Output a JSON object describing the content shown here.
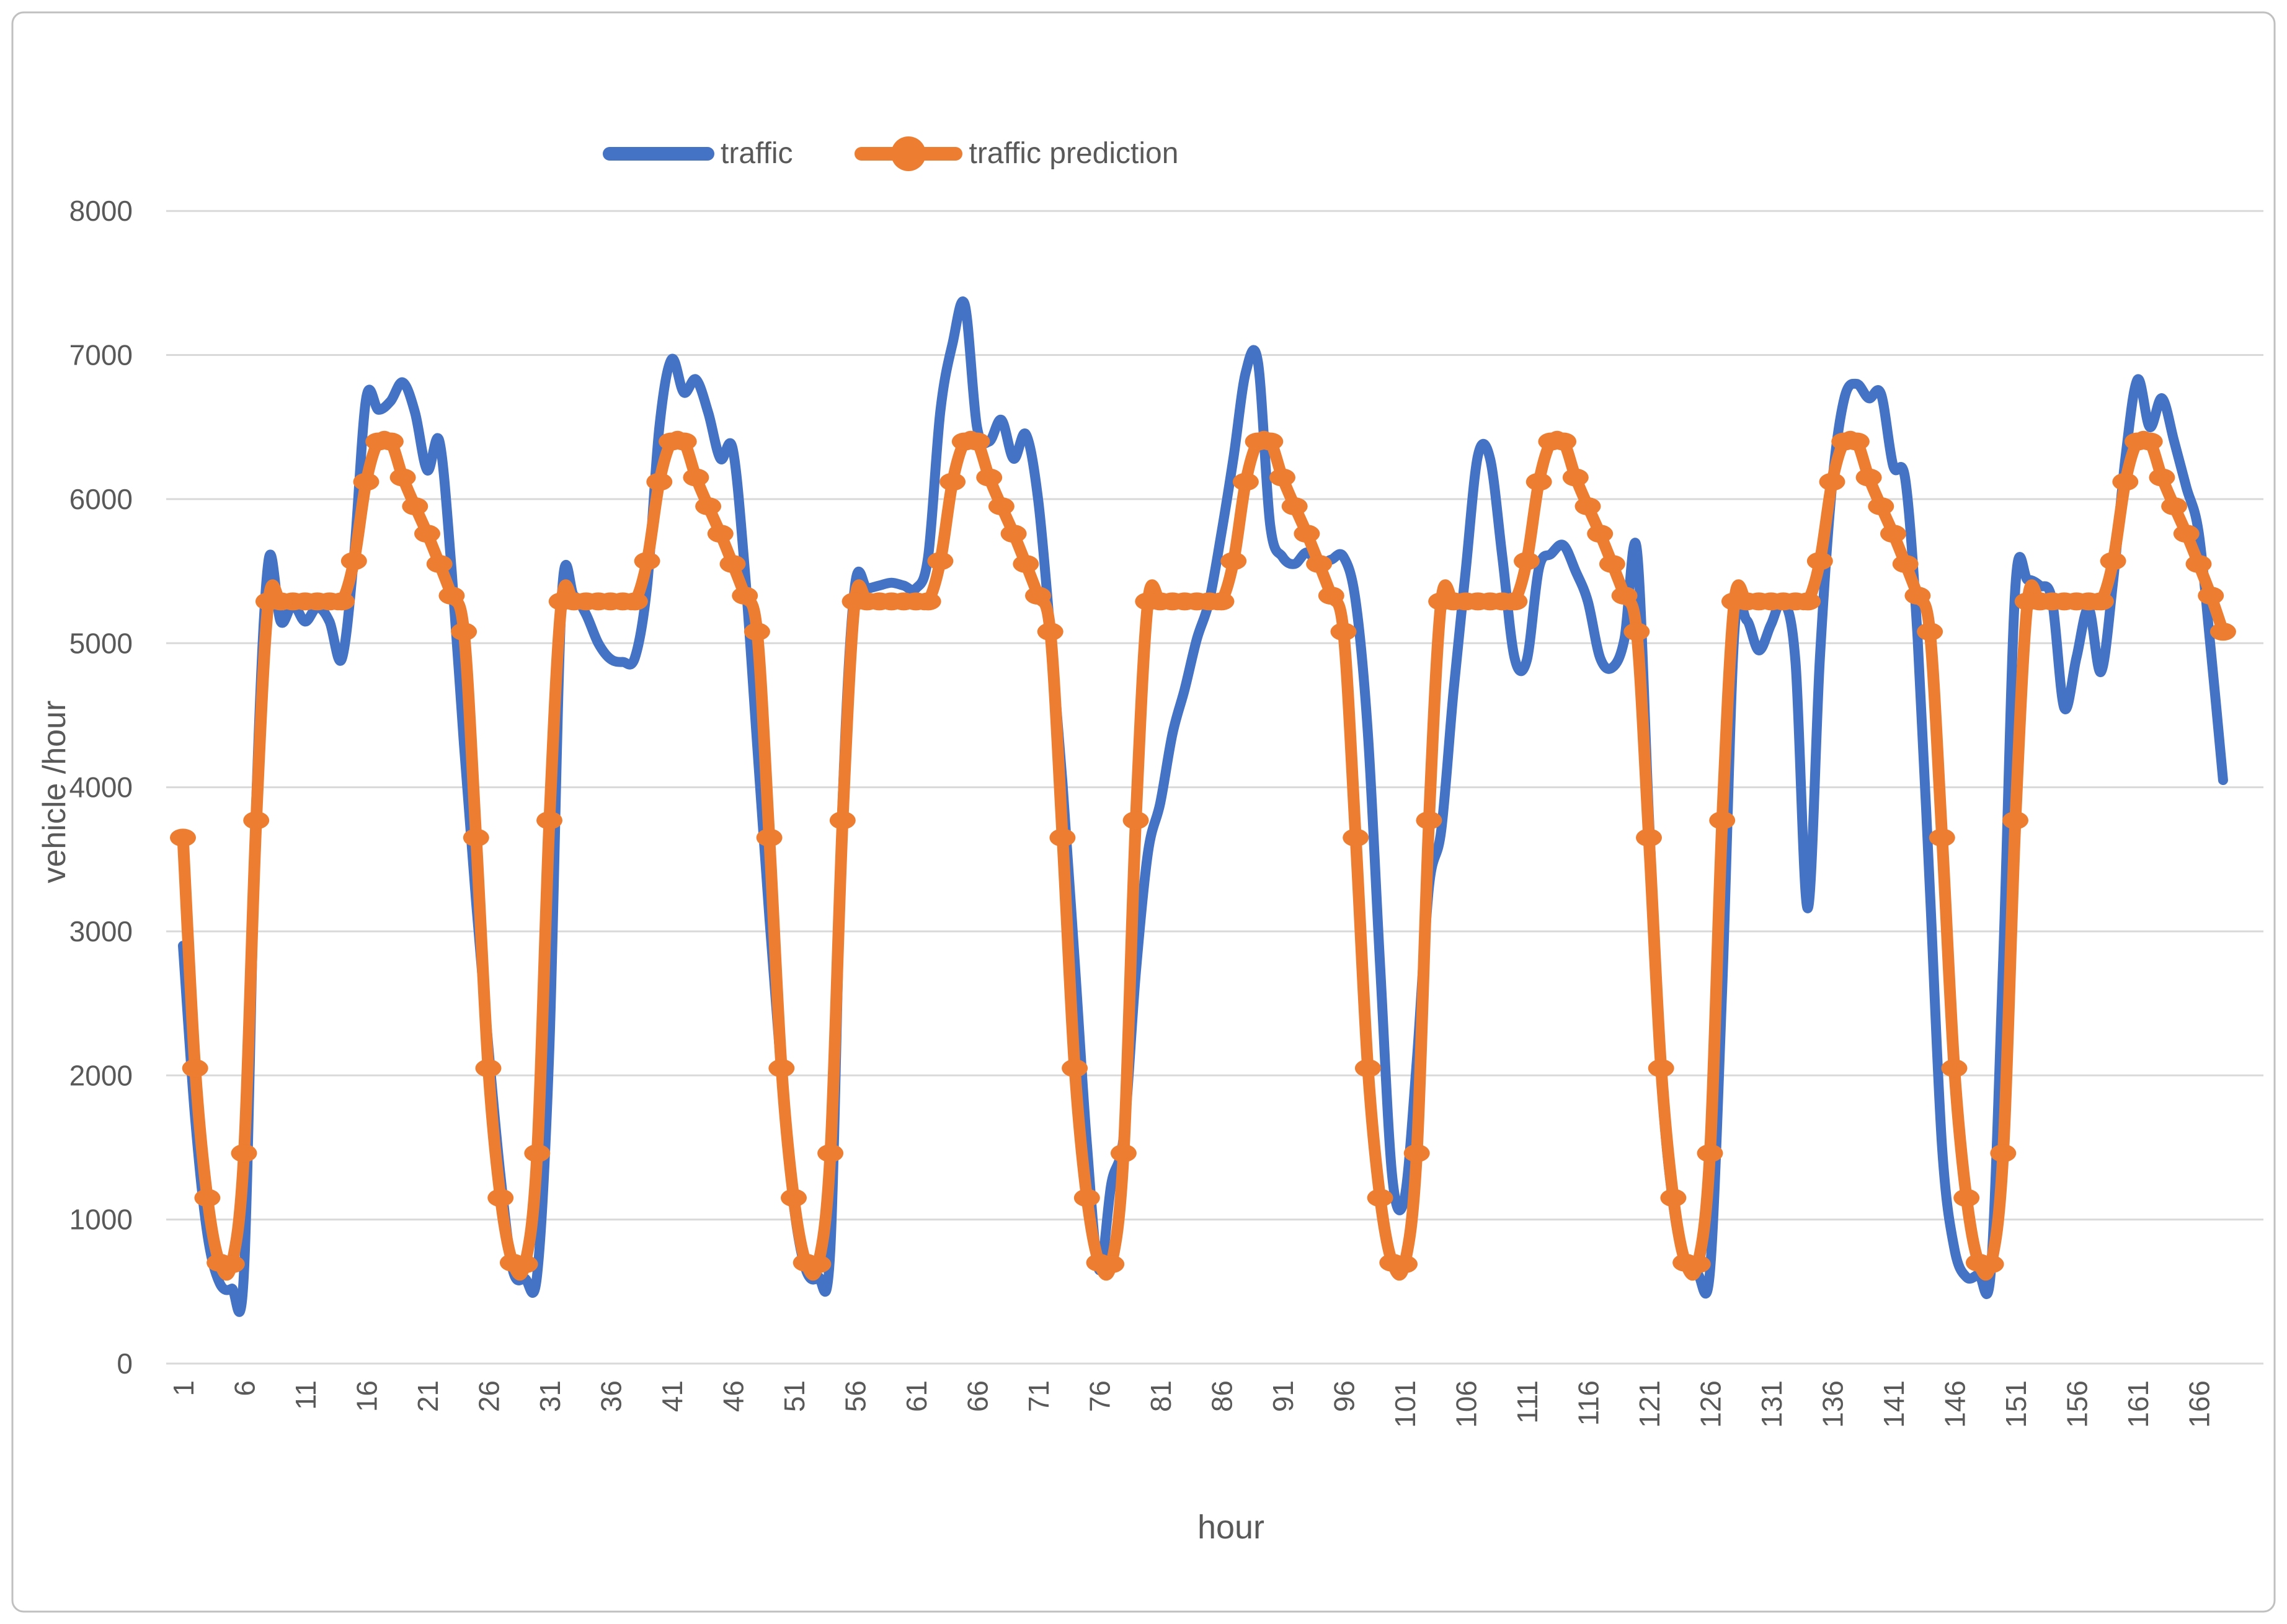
{
  "colors": {
    "traffic_series": "#4472C4",
    "prediction_series": "#ED7D31",
    "gridline": "#D9D9D9",
    "axis_text": "#595959",
    "chart_border": "#C0C0C0",
    "background": "#FFFFFF"
  },
  "legend": {
    "items": [
      {
        "label": "traffic"
      },
      {
        "label": "traffic prediction"
      }
    ]
  },
  "chart_data": {
    "type": "line",
    "title": "",
    "xlabel": "hour",
    "ylabel": "vehicle /hour",
    "x_range": [
      1,
      168
    ],
    "ylim": [
      0,
      8000
    ],
    "grid": "horizontal",
    "legend_position": "top-center",
    "y_ticks": [
      0,
      1000,
      2000,
      3000,
      4000,
      5000,
      6000,
      7000,
      8000
    ],
    "x_ticks": [
      1,
      6,
      11,
      16,
      21,
      26,
      31,
      36,
      41,
      46,
      51,
      56,
      61,
      66,
      71,
      76,
      81,
      86,
      91,
      96,
      101,
      106,
      111,
      116,
      121,
      126,
      131,
      136,
      141,
      146,
      151,
      156,
      161,
      166
    ],
    "series": [
      {
        "name": "traffic",
        "color": "#4472C4",
        "marker": "none",
        "values": [
          2900,
          1700,
          900,
          560,
          520,
          640,
          3900,
          5570,
          5150,
          5270,
          5150,
          5250,
          5150,
          4890,
          5600,
          6700,
          6620,
          6680,
          6810,
          6600,
          6200,
          6400,
          5500,
          4300,
          3200,
          2200,
          1300,
          650,
          590,
          620,
          2200,
          5300,
          5330,
          5200,
          5000,
          4890,
          4870,
          4900,
          5400,
          6500,
          6970,
          6740,
          6830,
          6600,
          6280,
          6350,
          5500,
          4300,
          3100,
          2000,
          1100,
          650,
          600,
          800,
          3900,
          5390,
          5380,
          5400,
          5420,
          5400,
          5380,
          5600,
          6610,
          7080,
          7350,
          6500,
          6400,
          6550,
          6280,
          6450,
          6000,
          5080,
          4030,
          2790,
          1520,
          650,
          1250,
          1570,
          2710,
          3550,
          3890,
          4370,
          4680,
          5030,
          5290,
          5760,
          6290,
          6880,
          6950,
          5820,
          5600,
          5550,
          5630,
          5550,
          5580,
          5600,
          5290,
          4370,
          2760,
          1290,
          1150,
          2100,
          3310,
          3700,
          4660,
          5500,
          6300,
          6280,
          5600,
          4900,
          4880,
          5520,
          5620,
          5680,
          5500,
          5290,
          4900,
          4830,
          5030,
          5660,
          3800,
          2000,
          1100,
          700,
          620,
          640,
          2600,
          5080,
          5160,
          4950,
          5130,
          5290,
          4870,
          3160,
          4900,
          6100,
          6700,
          6800,
          6700,
          6730,
          6230,
          6130,
          5030,
          3290,
          1500,
          800,
          600,
          620,
          650,
          2800,
          5390,
          5440,
          5400,
          5300,
          4550,
          4900,
          5240,
          4800,
          5430,
          6280,
          6830,
          6500,
          6700,
          6400,
          6080,
          5770,
          4950,
          4050
        ]
      },
      {
        "name": "traffic prediction",
        "color": "#ED7D31",
        "marker": "circle",
        "values": [
          3650,
          2050,
          1150,
          700,
          690,
          1460,
          3770,
          5290,
          5290,
          5290,
          5290,
          5290,
          5290,
          5290,
          5570,
          6120,
          6400,
          6400,
          6150,
          5950,
          5760,
          5550,
          5330,
          5080,
          3650,
          2050,
          1150,
          700,
          690,
          1460,
          3770,
          5290,
          5290,
          5290,
          5290,
          5290,
          5290,
          5290,
          5570,
          6120,
          6400,
          6400,
          6150,
          5950,
          5760,
          5550,
          5330,
          5080,
          3650,
          2050,
          1150,
          700,
          690,
          1460,
          3770,
          5290,
          5290,
          5290,
          5290,
          5290,
          5290,
          5290,
          5570,
          6120,
          6400,
          6400,
          6150,
          5950,
          5760,
          5550,
          5330,
          5080,
          3650,
          2050,
          1150,
          700,
          690,
          1460,
          3770,
          5290,
          5290,
          5290,
          5290,
          5290,
          5290,
          5290,
          5570,
          6120,
          6400,
          6400,
          6150,
          5950,
          5760,
          5550,
          5330,
          5080,
          3650,
          2050,
          1150,
          700,
          690,
          1460,
          3770,
          5290,
          5290,
          5290,
          5290,
          5290,
          5290,
          5290,
          5570,
          6120,
          6400,
          6400,
          6150,
          5950,
          5760,
          5550,
          5330,
          5080,
          3650,
          2050,
          1150,
          700,
          690,
          1460,
          3770,
          5290,
          5290,
          5290,
          5290,
          5290,
          5290,
          5290,
          5570,
          6120,
          6400,
          6400,
          6150,
          5950,
          5760,
          5550,
          5330,
          5080,
          3650,
          2050,
          1150,
          700,
          690,
          1460,
          3770,
          5290,
          5290,
          5290,
          5290,
          5290,
          5290,
          5290,
          5570,
          6120,
          6400,
          6400,
          6150,
          5950,
          5760,
          5550,
          5330,
          5080
        ]
      }
    ]
  }
}
